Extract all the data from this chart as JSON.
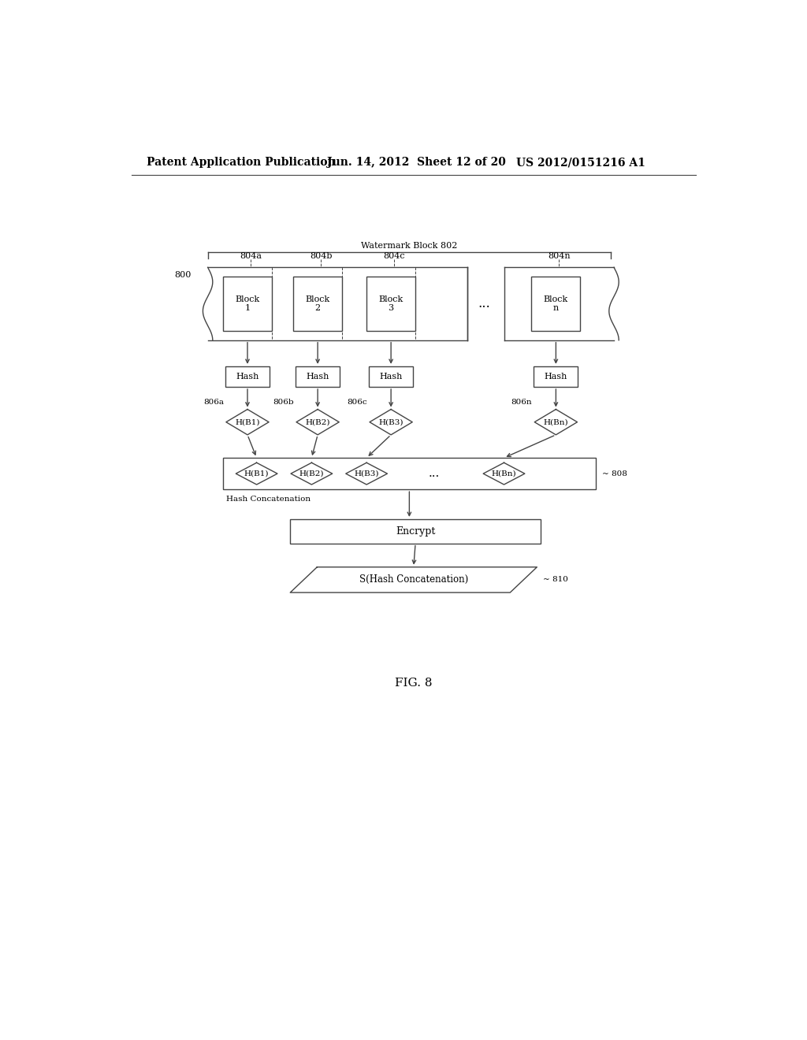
{
  "bg_color": "#ffffff",
  "line_color": "#444444",
  "header_left": "Patent Application Publication",
  "header_mid": "Jun. 14, 2012  Sheet 12 of 20",
  "header_right": "US 2012/0151216 A1",
  "fig_label": "FIG. 8",
  "watermark_block_label": "Watermark Block 802",
  "ref_800": "800",
  "block_labels": [
    "804a",
    "804b",
    "804c",
    "804n"
  ],
  "block_texts": [
    "Block\n1",
    "Block\n2",
    "Block\n3",
    "Block\nn"
  ],
  "hash_label": "Hash",
  "hash_node_labels": [
    "806a",
    "806b",
    "806c",
    "806n"
  ],
  "hash_node_texts": [
    "H(B1)",
    "H(B2)",
    "H(B3)",
    "H(Bn)"
  ],
  "concat_box_text": "Hash Concatenation",
  "concat_label": "808",
  "concat_inner_texts": [
    "H(B1)",
    "H(B2)",
    "H(B3)",
    "...",
    "H(Bn)"
  ],
  "encrypt_text": "Encrypt",
  "parallelogram_text": "S(Hash Concatenation)",
  "parallelogram_label": "810",
  "font_size_header": 10,
  "font_size_body": 8,
  "font_size_small": 7.5,
  "font_size_fig": 11
}
